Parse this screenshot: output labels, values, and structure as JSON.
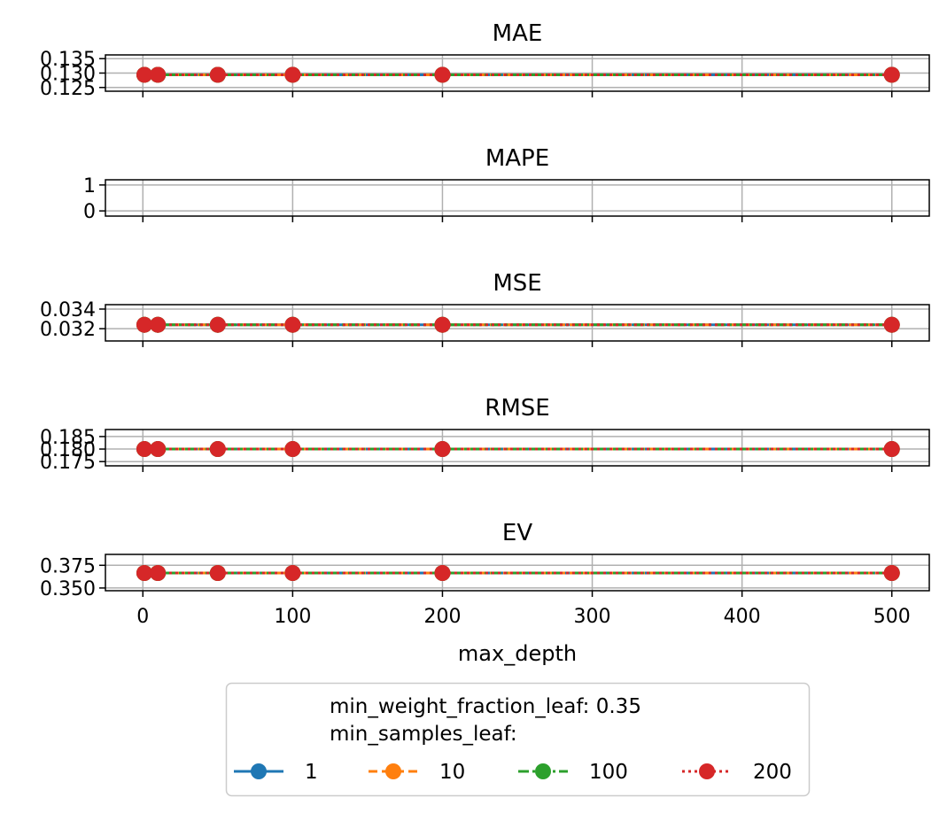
{
  "chart_data": {
    "type": "line",
    "xlabel": "max_depth",
    "x": [
      1,
      10,
      50,
      100,
      200,
      500
    ],
    "xlim": [
      -25,
      525
    ],
    "xticks": [
      0,
      100,
      200,
      300,
      400,
      500
    ],
    "grid": true,
    "legend": {
      "title_line1": "min_weight_fraction_leaf: 0.35",
      "title_line2": "min_samples_leaf:",
      "placement": "bottom-center",
      "entries": [
        {
          "label": "1",
          "color": "#1f77b4",
          "dash": "solid"
        },
        {
          "label": "10",
          "color": "#ff7f0e",
          "dash": "dashed"
        },
        {
          "label": "100",
          "color": "#2ca02c",
          "dash": "dashdot"
        },
        {
          "label": "200",
          "color": "#d62728",
          "dash": "dotted"
        }
      ]
    },
    "panels": [
      {
        "title": "MAE",
        "ylim": [
          0.1237,
          0.1363
        ],
        "yticks": [
          0.125,
          0.13,
          0.135
        ],
        "yticklabels": [
          "0.125",
          "0.130",
          "0.135"
        ],
        "series": [
          {
            "min_samples_leaf": "1",
            "values": [
              0.1294,
              0.1294,
              0.1294,
              0.1294,
              0.1294,
              0.1294
            ]
          },
          {
            "min_samples_leaf": "10",
            "values": [
              0.1294,
              0.1294,
              0.1294,
              0.1294,
              0.1294,
              0.1294
            ]
          },
          {
            "min_samples_leaf": "100",
            "values": [
              0.1294,
              0.1294,
              0.1294,
              0.1294,
              0.1294,
              0.1294
            ]
          },
          {
            "min_samples_leaf": "200",
            "values": [
              0.1294,
              0.1294,
              0.1294,
              0.1294,
              0.1294,
              0.1294
            ]
          }
        ]
      },
      {
        "title": "MAPE",
        "ylim": [
          -0.2,
          1.2
        ],
        "yticks": [
          0,
          1
        ],
        "yticklabels": [
          "0",
          "1"
        ],
        "series": []
      },
      {
        "title": "MSE",
        "ylim": [
          0.03075,
          0.03445
        ],
        "yticks": [
          0.032,
          0.034
        ],
        "yticklabels": [
          "0.032",
          "0.034"
        ],
        "series": [
          {
            "min_samples_leaf": "1",
            "values": [
              0.0324,
              0.0324,
              0.0324,
              0.0324,
              0.0324,
              0.0324
            ]
          },
          {
            "min_samples_leaf": "10",
            "values": [
              0.0324,
              0.0324,
              0.0324,
              0.0324,
              0.0324,
              0.0324
            ]
          },
          {
            "min_samples_leaf": "100",
            "values": [
              0.0324,
              0.0324,
              0.0324,
              0.0324,
              0.0324,
              0.0324
            ]
          },
          {
            "min_samples_leaf": "200",
            "values": [
              0.0324,
              0.0324,
              0.0324,
              0.0324,
              0.0324,
              0.0324
            ]
          }
        ]
      },
      {
        "title": "RMSE",
        "ylim": [
          0.1733,
          0.1878
        ],
        "yticks": [
          0.175,
          0.18,
          0.185
        ],
        "yticklabels": [
          "0.175",
          "0.180",
          "0.185"
        ],
        "series": [
          {
            "min_samples_leaf": "1",
            "values": [
              0.18,
              0.18,
              0.18,
              0.18,
              0.18,
              0.18
            ]
          },
          {
            "min_samples_leaf": "10",
            "values": [
              0.18,
              0.18,
              0.18,
              0.18,
              0.18,
              0.18
            ]
          },
          {
            "min_samples_leaf": "100",
            "values": [
              0.18,
              0.18,
              0.18,
              0.18,
              0.18,
              0.18
            ]
          },
          {
            "min_samples_leaf": "200",
            "values": [
              0.18,
              0.18,
              0.18,
              0.18,
              0.18,
              0.18
            ]
          }
        ]
      },
      {
        "title": "EV",
        "ylim": [
          0.347,
          0.387
        ],
        "yticks": [
          0.35,
          0.375
        ],
        "yticklabels": [
          "0.350",
          "0.375"
        ],
        "series": [
          {
            "min_samples_leaf": "1",
            "values": [
              0.3665,
              0.3665,
              0.3665,
              0.3665,
              0.3665,
              0.3665
            ]
          },
          {
            "min_samples_leaf": "10",
            "values": [
              0.3665,
              0.3665,
              0.3665,
              0.3665,
              0.3665,
              0.3665
            ]
          },
          {
            "min_samples_leaf": "100",
            "values": [
              0.3665,
              0.3665,
              0.3665,
              0.3665,
              0.3665,
              0.3665
            ]
          },
          {
            "min_samples_leaf": "200",
            "values": [
              0.3665,
              0.3665,
              0.3665,
              0.3665,
              0.3665,
              0.3665
            ]
          }
        ]
      }
    ]
  }
}
